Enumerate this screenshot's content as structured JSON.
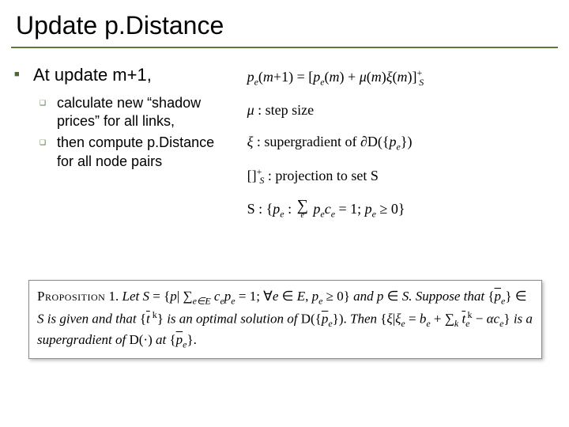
{
  "title": "Update p.Distance",
  "l1": "At update m+1,",
  "l2a": "calculate new “shadow prices” for all links,",
  "l2b": "then compute p.Distance for all node pairs",
  "colors": {
    "divider": "#5a7a3a",
    "bullet": "#4a6a2f",
    "text": "#000000",
    "background": "#ffffff",
    "box_border": "#888888"
  },
  "fonts": {
    "title_size": 32,
    "l1_size": 22,
    "l2_size": 18,
    "eq_size": 18,
    "prop_size": 17
  }
}
